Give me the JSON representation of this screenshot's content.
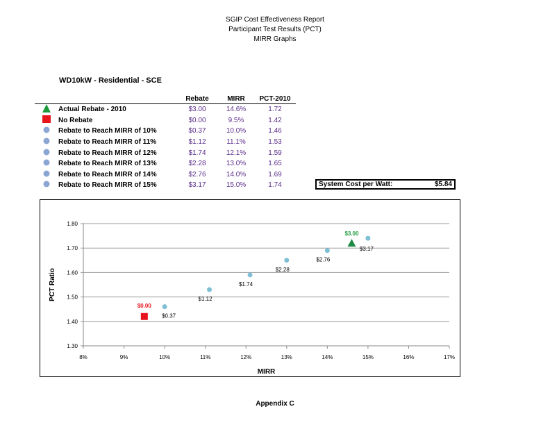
{
  "header": {
    "line1": "SGIP Cost Effectiveness Report",
    "line2": "Participant Test Results (PCT)",
    "line3": "MIRR Graphs"
  },
  "subtitle": "WD10kW  - Residential - SCE",
  "table": {
    "columns": [
      "Rebate",
      "MIRR",
      "PCT-2010"
    ],
    "rows": [
      {
        "marker": "triangle",
        "color": "#1e9a3c",
        "label": "Actual Rebate - 2010",
        "rebate": "$3.00",
        "mirr": "14.6%",
        "pct": "1.72"
      },
      {
        "marker": "square",
        "color": "#e8141b",
        "label": "No Rebate",
        "rebate": "$0.00",
        "mirr": "9.5%",
        "pct": "1.42"
      },
      {
        "marker": "circle",
        "color": "#8ba6d3",
        "label": "Rebate to Reach MIRR of 10%",
        "rebate": "$0.37",
        "mirr": "10.0%",
        "pct": "1.46"
      },
      {
        "marker": "circle",
        "color": "#8ba6d3",
        "label": "Rebate to Reach MIRR of 11%",
        "rebate": "$1.12",
        "mirr": "11.1%",
        "pct": "1.53"
      },
      {
        "marker": "circle",
        "color": "#8ba6d3",
        "label": "Rebate to Reach MIRR of 12%",
        "rebate": "$1.74",
        "mirr": "12.1%",
        "pct": "1.59"
      },
      {
        "marker": "circle",
        "color": "#8ba6d3",
        "label": "Rebate to Reach MIRR of 13%",
        "rebate": "$2.28",
        "mirr": "13.0%",
        "pct": "1.65"
      },
      {
        "marker": "circle",
        "color": "#8ba6d3",
        "label": "Rebate to Reach MIRR of 14%",
        "rebate": "$2.76",
        "mirr": "14.0%",
        "pct": "1.69"
      },
      {
        "marker": "circle",
        "color": "#8ba6d3",
        "label": "Rebate to Reach MIRR of 15%",
        "rebate": "$3.17",
        "mirr": "15.0%",
        "pct": "1.74"
      }
    ]
  },
  "system_cost": {
    "label": "System Cost per Watt:",
    "value": "$5.84"
  },
  "chart_data": {
    "type": "scatter",
    "xlabel": "MIRR",
    "ylabel": "PCT Ratio",
    "xlim": [
      8,
      17
    ],
    "ylim": [
      1.3,
      1.8
    ],
    "x_ticks": [
      "8%",
      "9%",
      "10%",
      "11%",
      "12%",
      "13%",
      "14%",
      "15%",
      "16%",
      "17%"
    ],
    "y_ticks": [
      "1.30",
      "1.40",
      "1.50",
      "1.60",
      "1.70",
      "1.80"
    ],
    "grid": "horizontal",
    "points": [
      {
        "x": 14.6,
        "y": 1.72,
        "label": "$3.00",
        "marker": "triangle",
        "color": "#1e8a45",
        "label_color": "#1e9a3c"
      },
      {
        "x": 9.5,
        "y": 1.42,
        "label": "$0.00",
        "marker": "square",
        "color": "#e8141b",
        "label_color": "#e8141b"
      },
      {
        "x": 10.0,
        "y": 1.46,
        "label": "$0.37",
        "marker": "circle",
        "color": "#7fbfd6",
        "label_color": "#000000"
      },
      {
        "x": 11.1,
        "y": 1.53,
        "label": "$1.12",
        "marker": "circle",
        "color": "#7fbfd6",
        "label_color": "#000000"
      },
      {
        "x": 12.1,
        "y": 1.59,
        "label": "$1.74",
        "marker": "circle",
        "color": "#7fbfd6",
        "label_color": "#000000"
      },
      {
        "x": 13.0,
        "y": 1.65,
        "label": "$2.28",
        "marker": "circle",
        "color": "#7fbfd6",
        "label_color": "#000000"
      },
      {
        "x": 14.0,
        "y": 1.69,
        "label": "$2.76",
        "marker": "circle",
        "color": "#7fbfd6",
        "label_color": "#000000"
      },
      {
        "x": 15.0,
        "y": 1.74,
        "label": "$3.17",
        "marker": "circle",
        "color": "#7fbfd6",
        "label_color": "#000000"
      }
    ]
  },
  "footer": "Appendix C"
}
